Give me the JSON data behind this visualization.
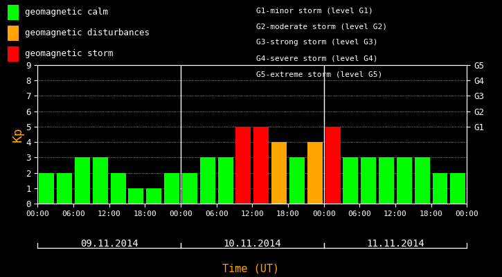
{
  "background_color": "#000000",
  "plot_bg_color": "#000000",
  "bar_values": [
    2,
    2,
    3,
    3,
    2,
    1,
    1,
    2,
    2,
    3,
    3,
    5,
    5,
    4,
    3,
    4,
    5,
    3,
    3,
    3,
    3,
    3,
    2,
    2
  ],
  "bar_colors": [
    "#00ff00",
    "#00ff00",
    "#00ff00",
    "#00ff00",
    "#00ff00",
    "#00ff00",
    "#00ff00",
    "#00ff00",
    "#00ff00",
    "#00ff00",
    "#00ff00",
    "#ff0000",
    "#ff0000",
    "#ffa500",
    "#00ff00",
    "#ffa500",
    "#ff0000",
    "#00ff00",
    "#00ff00",
    "#00ff00",
    "#00ff00",
    "#00ff00",
    "#00ff00",
    "#00ff00"
  ],
  "ylim": [
    0,
    9
  ],
  "yticks": [
    0,
    1,
    2,
    3,
    4,
    5,
    6,
    7,
    8,
    9
  ],
  "ylabel": "Kp",
  "ylabel_color": "#ffa500",
  "xlabel": "Time (UT)",
  "xlabel_color": "#ffa500",
  "tick_label_color": "#ffffff",
  "day_labels": [
    "09.11.2014",
    "10.11.2014",
    "11.11.2014"
  ],
  "right_axis_labels": [
    "G5",
    "G4",
    "G3",
    "G2",
    "G1"
  ],
  "right_axis_positions": [
    9,
    8,
    7,
    6,
    5
  ],
  "legend_items": [
    {
      "label": "geomagnetic calm",
      "color": "#00ff00"
    },
    {
      "label": "geomagnetic disturbances",
      "color": "#ffa500"
    },
    {
      "label": "geomagnetic storm",
      "color": "#ff0000"
    }
  ],
  "right_legend_lines": [
    "G1-minor storm (level G1)",
    "G2-moderate storm (level G2)",
    "G3-strong storm (level G3)",
    "G4-severe storm (level G4)",
    "G5-extreme storm (level G5)"
  ],
  "bar_width": 0.85,
  "figsize": [
    7.25,
    4.0
  ],
  "dpi": 100
}
